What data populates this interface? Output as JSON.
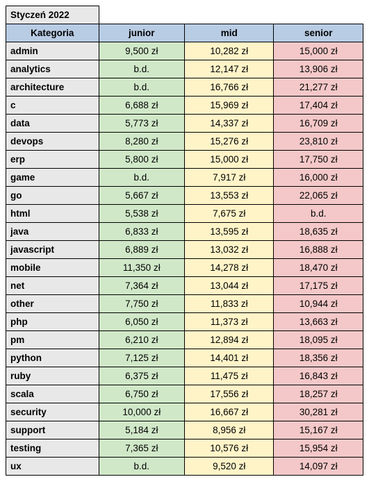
{
  "title": "Styczeń 2022",
  "colors": {
    "header_bg": "#b8cce4",
    "category_bg": "#e8e8e8",
    "junior_bg": "#d0e8c8",
    "mid_bg": "#fff4c8",
    "senior_bg": "#f4c8c8",
    "border": "#000000",
    "text": "#000000"
  },
  "columns": [
    {
      "key": "category",
      "label": "Kategoria",
      "width": "26%"
    },
    {
      "key": "junior",
      "label": "junior",
      "width": "24%"
    },
    {
      "key": "mid",
      "label": "mid",
      "width": "25%"
    },
    {
      "key": "senior",
      "label": "senior",
      "width": "25%"
    }
  ],
  "rows": [
    {
      "category": "admin",
      "junior": "9,500 zł",
      "mid": "10,282 zł",
      "senior": "15,000 zł"
    },
    {
      "category": "analytics",
      "junior": "b.d.",
      "mid": "12,147 zł",
      "senior": "13,906 zł"
    },
    {
      "category": "architecture",
      "junior": "b.d.",
      "mid": "16,766 zł",
      "senior": "21,277 zł"
    },
    {
      "category": "c",
      "junior": "6,688 zł",
      "mid": "15,969 zł",
      "senior": "17,404 zł"
    },
    {
      "category": "data",
      "junior": "5,773 zł",
      "mid": "14,337 zł",
      "senior": "16,709 zł"
    },
    {
      "category": "devops",
      "junior": "8,280 zł",
      "mid": "15,276 zł",
      "senior": "23,810 zł"
    },
    {
      "category": "erp",
      "junior": "5,800 zł",
      "mid": "15,000 zł",
      "senior": "17,750 zł"
    },
    {
      "category": "game",
      "junior": "b.d.",
      "mid": "7,917 zł",
      "senior": "16,000 zł"
    },
    {
      "category": "go",
      "junior": "5,667 zł",
      "mid": "13,553 zł",
      "senior": "22,065 zł"
    },
    {
      "category": "html",
      "junior": "5,538 zł",
      "mid": "7,675 zł",
      "senior": "b.d."
    },
    {
      "category": "java",
      "junior": "6,833 zł",
      "mid": "13,595 zł",
      "senior": "18,635 zł"
    },
    {
      "category": "javascript",
      "junior": "6,889 zł",
      "mid": "13,032 zł",
      "senior": "16,888 zł"
    },
    {
      "category": "mobile",
      "junior": "11,350 zł",
      "mid": "14,278 zł",
      "senior": "18,470 zł"
    },
    {
      "category": "net",
      "junior": "7,364 zł",
      "mid": "13,044 zł",
      "senior": "17,175 zł"
    },
    {
      "category": "other",
      "junior": "7,750 zł",
      "mid": "11,833 zł",
      "senior": "10,944 zł"
    },
    {
      "category": "php",
      "junior": "6,050 zł",
      "mid": "11,373 zł",
      "senior": "13,663 zł"
    },
    {
      "category": "pm",
      "junior": "6,210 zł",
      "mid": "12,894 zł",
      "senior": "18,095 zł"
    },
    {
      "category": "python",
      "junior": "7,125 zł",
      "mid": "14,401 zł",
      "senior": "18,356 zł"
    },
    {
      "category": "ruby",
      "junior": "6,375 zł",
      "mid": "11,475 zł",
      "senior": "16,843 zł"
    },
    {
      "category": "scala",
      "junior": "6,750 zł",
      "mid": "17,556 zł",
      "senior": "18,257 zł"
    },
    {
      "category": "security",
      "junior": "10,000 zł",
      "mid": "16,667 zł",
      "senior": "30,281 zł"
    },
    {
      "category": "support",
      "junior": "5,184 zł",
      "mid": "8,956 zł",
      "senior": "15,167 zł"
    },
    {
      "category": "testing",
      "junior": "7,365 zł",
      "mid": "10,576 zł",
      "senior": "15,954 zł"
    },
    {
      "category": "ux",
      "junior": "b.d.",
      "mid": "9,520 zł",
      "senior": "14,097 zł"
    }
  ]
}
